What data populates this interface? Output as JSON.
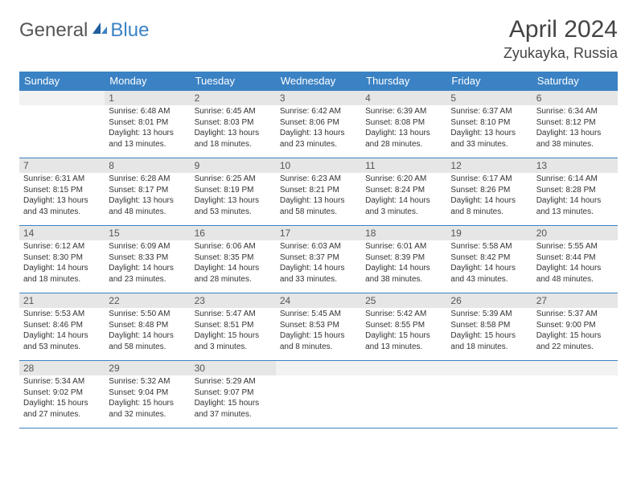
{
  "logo": {
    "general": "General",
    "blue": "Blue"
  },
  "title": "April 2024",
  "location": "Zyukayka, Russia",
  "colors": {
    "accent": "#3b82c4",
    "header_text": "#ffffff",
    "daynum_bg": "#e6e6e6",
    "empty_bg": "#f2f2f2",
    "text": "#333333",
    "title_text": "#444444",
    "border": "#3b82c4"
  },
  "weekdays": [
    "Sunday",
    "Monday",
    "Tuesday",
    "Wednesday",
    "Thursday",
    "Friday",
    "Saturday"
  ],
  "weeks": [
    [
      {
        "n": "",
        "lines": []
      },
      {
        "n": "1",
        "lines": [
          "Sunrise: 6:48 AM",
          "Sunset: 8:01 PM",
          "Daylight: 13 hours and 13 minutes."
        ]
      },
      {
        "n": "2",
        "lines": [
          "Sunrise: 6:45 AM",
          "Sunset: 8:03 PM",
          "Daylight: 13 hours and 18 minutes."
        ]
      },
      {
        "n": "3",
        "lines": [
          "Sunrise: 6:42 AM",
          "Sunset: 8:06 PM",
          "Daylight: 13 hours and 23 minutes."
        ]
      },
      {
        "n": "4",
        "lines": [
          "Sunrise: 6:39 AM",
          "Sunset: 8:08 PM",
          "Daylight: 13 hours and 28 minutes."
        ]
      },
      {
        "n": "5",
        "lines": [
          "Sunrise: 6:37 AM",
          "Sunset: 8:10 PM",
          "Daylight: 13 hours and 33 minutes."
        ]
      },
      {
        "n": "6",
        "lines": [
          "Sunrise: 6:34 AM",
          "Sunset: 8:12 PM",
          "Daylight: 13 hours and 38 minutes."
        ]
      }
    ],
    [
      {
        "n": "7",
        "lines": [
          "Sunrise: 6:31 AM",
          "Sunset: 8:15 PM",
          "Daylight: 13 hours and 43 minutes."
        ]
      },
      {
        "n": "8",
        "lines": [
          "Sunrise: 6:28 AM",
          "Sunset: 8:17 PM",
          "Daylight: 13 hours and 48 minutes."
        ]
      },
      {
        "n": "9",
        "lines": [
          "Sunrise: 6:25 AM",
          "Sunset: 8:19 PM",
          "Daylight: 13 hours and 53 minutes."
        ]
      },
      {
        "n": "10",
        "lines": [
          "Sunrise: 6:23 AM",
          "Sunset: 8:21 PM",
          "Daylight: 13 hours and 58 minutes."
        ]
      },
      {
        "n": "11",
        "lines": [
          "Sunrise: 6:20 AM",
          "Sunset: 8:24 PM",
          "Daylight: 14 hours and 3 minutes."
        ]
      },
      {
        "n": "12",
        "lines": [
          "Sunrise: 6:17 AM",
          "Sunset: 8:26 PM",
          "Daylight: 14 hours and 8 minutes."
        ]
      },
      {
        "n": "13",
        "lines": [
          "Sunrise: 6:14 AM",
          "Sunset: 8:28 PM",
          "Daylight: 14 hours and 13 minutes."
        ]
      }
    ],
    [
      {
        "n": "14",
        "lines": [
          "Sunrise: 6:12 AM",
          "Sunset: 8:30 PM",
          "Daylight: 14 hours and 18 minutes."
        ]
      },
      {
        "n": "15",
        "lines": [
          "Sunrise: 6:09 AM",
          "Sunset: 8:33 PM",
          "Daylight: 14 hours and 23 minutes."
        ]
      },
      {
        "n": "16",
        "lines": [
          "Sunrise: 6:06 AM",
          "Sunset: 8:35 PM",
          "Daylight: 14 hours and 28 minutes."
        ]
      },
      {
        "n": "17",
        "lines": [
          "Sunrise: 6:03 AM",
          "Sunset: 8:37 PM",
          "Daylight: 14 hours and 33 minutes."
        ]
      },
      {
        "n": "18",
        "lines": [
          "Sunrise: 6:01 AM",
          "Sunset: 8:39 PM",
          "Daylight: 14 hours and 38 minutes."
        ]
      },
      {
        "n": "19",
        "lines": [
          "Sunrise: 5:58 AM",
          "Sunset: 8:42 PM",
          "Daylight: 14 hours and 43 minutes."
        ]
      },
      {
        "n": "20",
        "lines": [
          "Sunrise: 5:55 AM",
          "Sunset: 8:44 PM",
          "Daylight: 14 hours and 48 minutes."
        ]
      }
    ],
    [
      {
        "n": "21",
        "lines": [
          "Sunrise: 5:53 AM",
          "Sunset: 8:46 PM",
          "Daylight: 14 hours and 53 minutes."
        ]
      },
      {
        "n": "22",
        "lines": [
          "Sunrise: 5:50 AM",
          "Sunset: 8:48 PM",
          "Daylight: 14 hours and 58 minutes."
        ]
      },
      {
        "n": "23",
        "lines": [
          "Sunrise: 5:47 AM",
          "Sunset: 8:51 PM",
          "Daylight: 15 hours and 3 minutes."
        ]
      },
      {
        "n": "24",
        "lines": [
          "Sunrise: 5:45 AM",
          "Sunset: 8:53 PM",
          "Daylight: 15 hours and 8 minutes."
        ]
      },
      {
        "n": "25",
        "lines": [
          "Sunrise: 5:42 AM",
          "Sunset: 8:55 PM",
          "Daylight: 15 hours and 13 minutes."
        ]
      },
      {
        "n": "26",
        "lines": [
          "Sunrise: 5:39 AM",
          "Sunset: 8:58 PM",
          "Daylight: 15 hours and 18 minutes."
        ]
      },
      {
        "n": "27",
        "lines": [
          "Sunrise: 5:37 AM",
          "Sunset: 9:00 PM",
          "Daylight: 15 hours and 22 minutes."
        ]
      }
    ],
    [
      {
        "n": "28",
        "lines": [
          "Sunrise: 5:34 AM",
          "Sunset: 9:02 PM",
          "Daylight: 15 hours and 27 minutes."
        ]
      },
      {
        "n": "29",
        "lines": [
          "Sunrise: 5:32 AM",
          "Sunset: 9:04 PM",
          "Daylight: 15 hours and 32 minutes."
        ]
      },
      {
        "n": "30",
        "lines": [
          "Sunrise: 5:29 AM",
          "Sunset: 9:07 PM",
          "Daylight: 15 hours and 37 minutes."
        ]
      },
      {
        "n": "",
        "lines": []
      },
      {
        "n": "",
        "lines": []
      },
      {
        "n": "",
        "lines": []
      },
      {
        "n": "",
        "lines": []
      }
    ]
  ]
}
